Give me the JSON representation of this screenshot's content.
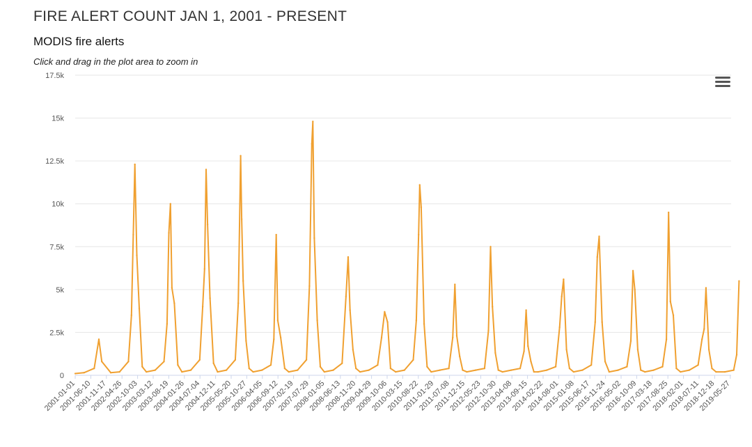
{
  "header": {
    "page_title": "FIRE ALERT COUNT JAN 1, 2001 - PRESENT"
  },
  "chart_menu": {
    "icon": "hamburger-menu-icon"
  },
  "chart_data": {
    "type": "line",
    "title": "MODIS fire alerts",
    "subtitle": "Click and drag in the plot area to zoom in",
    "xlabel": "",
    "ylabel": "",
    "ylim": [
      0,
      17500
    ],
    "y_ticks": [
      "0",
      "2.5k",
      "5k",
      "7.5k",
      "10k",
      "12.5k",
      "15k",
      "17.5k"
    ],
    "y_tick_values": [
      0,
      2500,
      5000,
      7500,
      10000,
      12500,
      15000,
      17500
    ],
    "x_tick_labels": [
      "2001-01-01",
      "2001-06-10",
      "2001-11-17",
      "2002-04-26",
      "2002-10-03",
      "2003-03-12",
      "2003-08-19",
      "2004-01-26",
      "2004-07-04",
      "2004-12-11",
      "2005-05-20",
      "2005-10-27",
      "2006-04-05",
      "2006-09-12",
      "2007-02-19",
      "2007-07-29",
      "2008-01-05",
      "2008-06-13",
      "2008-11-20",
      "2009-04-29",
      "2009-10-06",
      "2010-03-15",
      "2010-08-22",
      "2011-01-29",
      "2011-07-08",
      "2011-12-15",
      "2012-05-23",
      "2012-10-30",
      "2013-04-08",
      "2013-09-15",
      "2014-02-22",
      "2014-08-01",
      "2015-01-08",
      "2015-06-17",
      "2015-11-24",
      "2016-05-02",
      "2016-10-09",
      "2017-03-18",
      "2017-08-25",
      "2018-02-01",
      "2018-07-11",
      "2018-12-18",
      "2019-05-27"
    ],
    "grid": true,
    "legend": "none",
    "color": "#f0a030",
    "series": [
      {
        "x": [
          "2001-01-01",
          "2001-04-01",
          "2001-07-15",
          "2001-09-01",
          "2001-10-01",
          "2002-01-01",
          "2002-04-01",
          "2002-07-01",
          "2002-08-01",
          "2002-08-20",
          "2002-09-05",
          "2002-09-25",
          "2002-10-20",
          "2002-11-20",
          "2003-01-01",
          "2003-04-01",
          "2003-07-01",
          "2003-08-01",
          "2003-08-20",
          "2003-09-05",
          "2003-09-20",
          "2003-10-15",
          "2003-11-20",
          "2004-01-01",
          "2004-04-01",
          "2004-07-01",
          "2004-08-01",
          "2004-08-20",
          "2004-09-05",
          "2004-09-20",
          "2004-10-15",
          "2004-11-20",
          "2005-01-01",
          "2005-04-01",
          "2005-07-01",
          "2005-08-01",
          "2005-08-25",
          "2005-09-05",
          "2005-09-20",
          "2005-10-20",
          "2005-11-20",
          "2006-01-01",
          "2006-04-01",
          "2006-07-01",
          "2006-08-01",
          "2006-08-25",
          "2006-09-10",
          "2006-10-10",
          "2006-11-20",
          "2007-01-01",
          "2007-04-01",
          "2007-07-01",
          "2007-08-01",
          "2007-08-25",
          "2007-09-05",
          "2007-09-20",
          "2007-10-20",
          "2007-11-20",
          "2008-01-01",
          "2008-04-01",
          "2008-07-01",
          "2008-08-10",
          "2008-09-01",
          "2008-09-20",
          "2008-10-20",
          "2008-11-20",
          "2009-01-01",
          "2009-04-01",
          "2009-07-01",
          "2009-08-10",
          "2009-09-10",
          "2009-10-10",
          "2009-11-10",
          "2010-01-01",
          "2010-04-01",
          "2010-07-01",
          "2010-08-01",
          "2010-08-25",
          "2010-09-05",
          "2010-09-20",
          "2010-10-20",
          "2010-11-20",
          "2011-01-01",
          "2011-04-01",
          "2011-07-01",
          "2011-08-10",
          "2011-09-01",
          "2011-09-20",
          "2011-10-20",
          "2011-11-20",
          "2012-01-01",
          "2012-04-01",
          "2012-07-01",
          "2012-08-10",
          "2012-09-01",
          "2012-09-20",
          "2012-10-20",
          "2012-11-20",
          "2013-01-01",
          "2013-04-01",
          "2013-07-01",
          "2013-08-10",
          "2013-09-01",
          "2013-09-20",
          "2013-10-20",
          "2013-11-20",
          "2014-01-01",
          "2014-04-01",
          "2014-07-01",
          "2014-08-10",
          "2014-09-01",
          "2014-09-20",
          "2014-10-20",
          "2014-11-20",
          "2015-01-01",
          "2015-04-01",
          "2015-07-01",
          "2015-08-10",
          "2015-09-01",
          "2015-09-20",
          "2015-10-20",
          "2015-11-20",
          "2016-01-01",
          "2016-04-01",
          "2016-07-01",
          "2016-08-10",
          "2016-09-01",
          "2016-09-20",
          "2016-10-20",
          "2016-11-20",
          "2017-01-01",
          "2017-04-01",
          "2017-07-01",
          "2017-08-10",
          "2017-09-01",
          "2017-09-20",
          "2017-10-20",
          "2017-11-20",
          "2018-01-01",
          "2018-04-01",
          "2018-07-01",
          "2018-08-10",
          "2018-09-01",
          "2018-09-20",
          "2018-10-20",
          "2018-11-20",
          "2019-01-01",
          "2019-04-01",
          "2019-07-01",
          "2019-08-01",
          "2019-08-25"
        ],
        "values": [
          100,
          150,
          400,
          2100,
          800,
          150,
          200,
          800,
          3500,
          8200,
          12300,
          7000,
          3900,
          500,
          200,
          300,
          800,
          3000,
          8300,
          10000,
          5100,
          4200,
          600,
          200,
          300,
          900,
          4000,
          6200,
          12000,
          8800,
          4500,
          700,
          200,
          300,
          900,
          4200,
          12800,
          9100,
          5500,
          2000,
          400,
          200,
          300,
          600,
          2100,
          8200,
          3200,
          2200,
          400,
          200,
          300,
          900,
          5200,
          13500,
          14800,
          8000,
          3200,
          500,
          200,
          300,
          700,
          4600,
          6900,
          3800,
          1500,
          400,
          200,
          300,
          600,
          2200,
          3700,
          3100,
          400,
          200,
          300,
          900,
          3200,
          8200,
          11100,
          9800,
          3000,
          500,
          200,
          300,
          400,
          2200,
          5300,
          2300,
          1100,
          300,
          200,
          300,
          400,
          2600,
          7500,
          4000,
          1300,
          300,
          200,
          300,
          400,
          1400,
          3800,
          1700,
          800,
          200,
          200,
          300,
          500,
          2800,
          4600,
          5600,
          1500,
          400,
          200,
          300,
          600,
          3100,
          6900,
          8100,
          3100,
          800,
          200,
          300,
          500,
          2000,
          6100,
          5000,
          1500,
          300,
          200,
          300,
          500,
          2100,
          9500,
          4300,
          3500,
          400,
          200,
          300,
          600,
          2100,
          2700,
          5100,
          1500,
          400,
          200,
          200,
          300,
          1200,
          5500
        ]
      }
    ]
  }
}
